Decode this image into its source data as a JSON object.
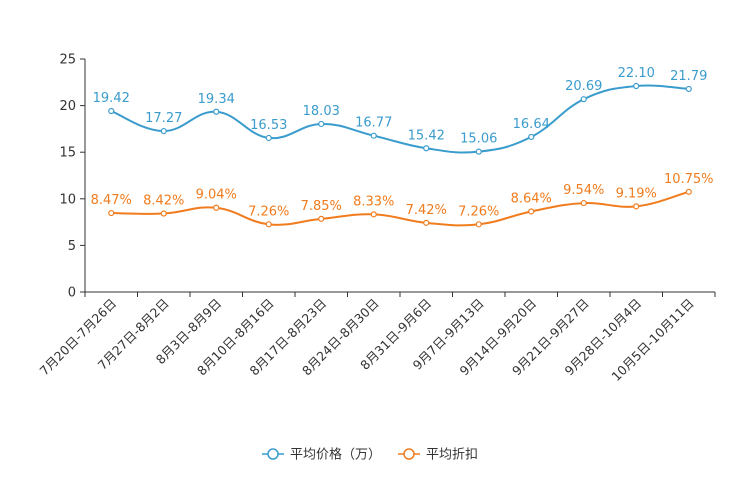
{
  "chart_data": {
    "type": "line",
    "categories": [
      "7月20日-7月26日",
      "7月27日-8月2日",
      "8月3日-8月9日",
      "8月10日-8月16日",
      "8月17日-8月23日",
      "8月24日-8月30日",
      "8月31日-9月6日",
      "9月7日-9月13日",
      "9月14日-9月20日",
      "9月21日-9月27日",
      "9月28日-10月4日",
      "10月5日-10月11日"
    ],
    "ylim": [
      0,
      25
    ],
    "yticks": [
      "0",
      "5",
      "10",
      "15",
      "20",
      "25"
    ],
    "grid": false,
    "legend": "bottom",
    "series": [
      {
        "name": "平均价格（万）",
        "color": "#3a9ccd",
        "values": [
          19.42,
          17.27,
          19.34,
          16.53,
          18.03,
          16.77,
          15.42,
          15.06,
          16.64,
          20.69,
          22.1,
          21.79
        ],
        "labels": [
          "19.42",
          "17.27",
          "19.34",
          "16.53",
          "18.03",
          "16.77",
          "15.42",
          "15.06",
          "16.64",
          "20.69",
          "22.10",
          "21.79"
        ]
      },
      {
        "name": "平均折扣",
        "color": "#f07c1e",
        "values": [
          8.47,
          8.42,
          9.04,
          7.26,
          7.85,
          8.33,
          7.42,
          7.26,
          8.64,
          9.54,
          9.19,
          10.75
        ],
        "labels": [
          "8.47%",
          "8.42%",
          "9.04%",
          "7.26%",
          "7.85%",
          "8.33%",
          "7.42%",
          "7.26%",
          "8.64%",
          "9.54%",
          "9.19%",
          "10.75%"
        ]
      }
    ]
  }
}
